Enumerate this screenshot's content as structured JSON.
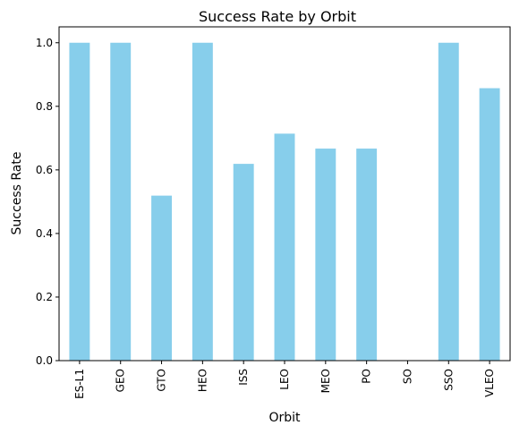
{
  "chart_data": {
    "type": "bar",
    "title": "Success Rate by Orbit",
    "xlabel": "Orbit",
    "ylabel": "Success Rate",
    "categories": [
      "ES-L1",
      "GEO",
      "GTO",
      "HEO",
      "ISS",
      "LEO",
      "MEO",
      "PO",
      "SO",
      "SSO",
      "VLEO"
    ],
    "values": [
      1.0,
      1.0,
      0.519,
      1.0,
      0.619,
      0.714,
      0.667,
      0.667,
      0.0,
      1.0,
      0.857
    ],
    "ylim": [
      0,
      1.05
    ],
    "yticks": [
      "0.0",
      "0.2",
      "0.4",
      "0.6",
      "0.8",
      "1.0"
    ],
    "bar_color": "#87ceeb",
    "grid": false,
    "legend": "none"
  }
}
